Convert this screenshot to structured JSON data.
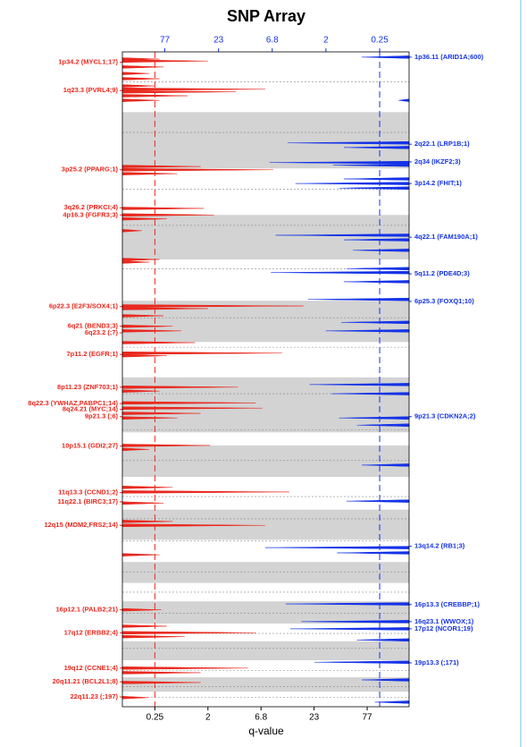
{
  "chart_data": {
    "type": "genomic-profile",
    "title": "SNP Array",
    "xlabel": "q-value",
    "xlim": [
      0.07,
      200
    ],
    "xticks": [
      0.25,
      2,
      6.8,
      23,
      77
    ],
    "x2lim": [
      200,
      0.08
    ],
    "x2ticks": [
      77,
      23,
      6.8,
      2,
      0.25
    ],
    "ylim": [
      0,
      100
    ],
    "bands": [
      [
        9.2,
        17.8
      ],
      [
        24.9,
        31.7
      ],
      [
        38.0,
        44.3
      ],
      [
        49.7,
        58.1
      ],
      [
        60.1,
        64.9
      ],
      [
        69.9,
        74.5
      ],
      [
        77.9,
        81.1
      ],
      [
        83.9,
        87.3
      ],
      [
        90.0,
        92.9
      ],
      [
        95.5,
        97.7
      ]
    ],
    "centromeres": [
      4.6,
      12.3,
      21.0,
      26.5,
      33.1,
      40.6,
      45.1,
      52.2,
      57.7,
      62.4,
      67.9,
      71.3,
      74.7,
      79.4,
      82.5,
      85.7,
      88.8,
      91.1,
      94.5,
      96.9,
      98.6
    ],
    "series": [
      {
        "color": "#e8281e",
        "axis": "x",
        "threshold": 0.25,
        "positions": [
          1.1,
          1.4,
          2.3,
          3.3,
          4.1,
          5.2,
          5.7,
          6.1,
          6.7,
          7.4,
          17.5,
          18.0,
          18.6,
          23.9,
          24.9,
          25.5,
          27.3,
          31.7,
          32.1,
          38.8,
          39.2,
          40.3,
          41.9,
          42.6,
          44.4,
          46.0,
          46.4,
          51.2,
          51.8,
          53.6,
          54.4,
          55.2,
          55.9,
          60.1,
          60.7,
          66.5,
          67.2,
          68.9,
          71.7,
          72.3,
          76.8,
          85.2,
          87.7,
          88.7,
          89.3,
          94.1,
          94.8,
          96.3,
          98.6
        ],
        "values": [
          0.3,
          2.0,
          0.35,
          0.2,
          0.3,
          0.25,
          7.5,
          3.8,
          0.9,
          0.3,
          1.5,
          9.0,
          0.6,
          1.7,
          2.3,
          0.4,
          0.15,
          0.3,
          0.2,
          18,
          2.0,
          0.35,
          0.5,
          0.7,
          1.2,
          11,
          0.4,
          4.0,
          0.3,
          6,
          7,
          1.5,
          0.6,
          2.1,
          0.2,
          0.5,
          13,
          0.35,
          0.5,
          7.5,
          0.3,
          0.32,
          0.4,
          6.0,
          0.8,
          5,
          1.5,
          1.5,
          0.2
        ],
        "peaks": [
          {
            "label": "1p34.2 (MYCL1;17)",
            "pos": 1.6
          },
          {
            "label": "1q23.3 (PVRL4;9)",
            "pos": 5.9
          },
          {
            "label": "3p25.2 (PPARG;1)",
            "pos": 18.0
          },
          {
            "label": "3q26.2 (PRKCI;4)",
            "pos": 23.8
          },
          {
            "label": "4p16.3 (FGFR3;3)",
            "pos": 24.9
          },
          {
            "label": "6p22.3 (E2F3/SOX4;1)",
            "pos": 38.9
          },
          {
            "label": "6q21 (BEND3;3)",
            "pos": 41.9
          },
          {
            "label": "6q23.2 (;7)",
            "pos": 42.9
          },
          {
            "label": "7p11.2 (EGFR;1)",
            "pos": 46.2
          },
          {
            "label": "8p11.23 (ZNF703;1)",
            "pos": 51.2
          },
          {
            "label": "8q22.3 (YWHAZ,PABPC1;14)",
            "pos": 53.7
          },
          {
            "label": "8q24.21 (MYC;14)",
            "pos": 54.6
          },
          {
            "label": "9p21.3 (;6)",
            "pos": 55.7
          },
          {
            "label": "10p15.1 (GDI2;27)",
            "pos": 60.2
          },
          {
            "label": "11q13.3 (CCND1;2)",
            "pos": 67.3
          },
          {
            "label": "11q22.1 (BIRC3;17)",
            "pos": 68.7
          },
          {
            "label": "12q15 (MDM2,FRS2;14)",
            "pos": 72.3
          },
          {
            "label": "16p12.1 (PALB2;21)",
            "pos": 85.2
          },
          {
            "label": "17q12 (ERBB2;4)",
            "pos": 88.7
          },
          {
            "label": "19q12 (CCNE1;4)",
            "pos": 94.1
          },
          {
            "label": "20q11.21 (BCL2L1;8)",
            "pos": 96.2
          },
          {
            "label": "22q11.23 (;197)",
            "pos": 98.5
          }
        ]
      },
      {
        "color": "#1432e6",
        "axis": "x2",
        "threshold": 0.25,
        "positions": [
          0.8,
          7.4,
          13.9,
          14.6,
          16.9,
          17.3,
          19.4,
          20.1,
          20.8,
          28.0,
          28.7,
          30.3,
          33.1,
          33.7,
          35.1,
          37.8,
          41.3,
          42.6,
          50.8,
          52.2,
          55.9,
          57.0,
          63.1,
          68.6,
          75.7,
          76.5,
          84.3,
          87.0,
          88.1,
          89.8,
          93.2,
          95.9,
          99.3
        ],
        "values": [
          0.5,
          0.12,
          4.8,
          1.0,
          7.2,
          1.5,
          1.0,
          4,
          1.2,
          6.3,
          1.0,
          0.7,
          0.9,
          7,
          1.0,
          3,
          1.1,
          2.0,
          2.9,
          1.6,
          1.2,
          0.6,
          0.5,
          0.9,
          8,
          1.3,
          5,
          3.5,
          4.5,
          0.6,
          2.6,
          0.5,
          0.3
        ],
        "peaks": [
          {
            "label": "1p36.11 (ARID1A;600)",
            "pos": 0.8
          },
          {
            "label": "2q22.1 (LRP1B;1)",
            "pos": 14.1
          },
          {
            "label": "2q34 (IKZF2;3)",
            "pos": 16.8
          },
          {
            "label": "3p14.2 (FHIT;1)",
            "pos": 20.1
          },
          {
            "label": "4q22.1 (FAM190A;1)",
            "pos": 28.3
          },
          {
            "label": "5q11.2 (PDE4D;3)",
            "pos": 33.9
          },
          {
            "label": "6p25.3 (FOXQ1;10)",
            "pos": 38.1
          },
          {
            "label": "9p21.3 (CDKN2A;2)",
            "pos": 55.7
          },
          {
            "label": "13q14.2 (RB1;3)",
            "pos": 75.5
          },
          {
            "label": "16p13.3 (CREBBP;1)",
            "pos": 84.4
          },
          {
            "label": "16q23.1 (WWOX;1)",
            "pos": 87.0
          },
          {
            "label": "17p12 (NCOR1;19)",
            "pos": 88.1
          },
          {
            "label": "19p13.3 (;171)",
            "pos": 93.3
          }
        ]
      }
    ]
  }
}
